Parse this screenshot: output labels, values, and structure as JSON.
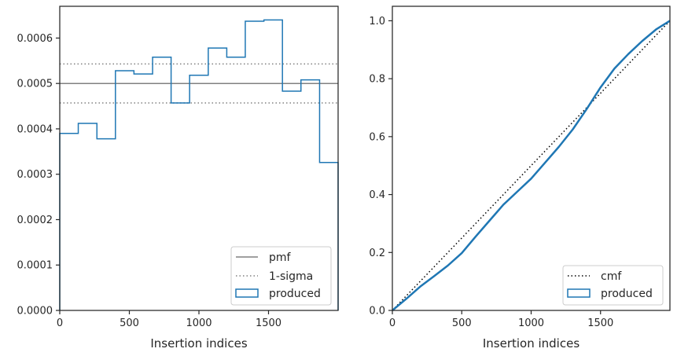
{
  "chart_data": [
    {
      "type": "histogram-step",
      "xlabel": "Insertion indices",
      "ylabel": "",
      "xlim": [
        0,
        2000
      ],
      "ylim": [
        0,
        0.00067
      ],
      "xticks": [
        0,
        500,
        1000,
        1500
      ],
      "xtick_labels": [
        "0",
        "500",
        "1000",
        "1500"
      ],
      "yticks": [
        0,
        0.0001,
        0.0002,
        0.0003,
        0.0004,
        0.0005,
        0.0006
      ],
      "ytick_labels": [
        "0.0000",
        "0.0001",
        "0.0002",
        "0.0003",
        "0.0004",
        "0.0005",
        "0.0006"
      ],
      "bins": [
        {
          "x0": 0,
          "x1": 133,
          "y": 0.00039
        },
        {
          "x0": 133,
          "x1": 267,
          "y": 0.000412
        },
        {
          "x0": 267,
          "x1": 400,
          "y": 0.000378
        },
        {
          "x0": 400,
          "x1": 533,
          "y": 0.000528
        },
        {
          "x0": 533,
          "x1": 667,
          "y": 0.000521
        },
        {
          "x0": 667,
          "x1": 800,
          "y": 0.000558
        },
        {
          "x0": 800,
          "x1": 933,
          "y": 0.000457
        },
        {
          "x0": 933,
          "x1": 1067,
          "y": 0.000518
        },
        {
          "x0": 1067,
          "x1": 1200,
          "y": 0.000578
        },
        {
          "x0": 1200,
          "x1": 1333,
          "y": 0.000558
        },
        {
          "x0": 1333,
          "x1": 1467,
          "y": 0.000637
        },
        {
          "x0": 1467,
          "x1": 1600,
          "y": 0.00064
        },
        {
          "x0": 1600,
          "x1": 1733,
          "y": 0.000483
        },
        {
          "x0": 1733,
          "x1": 1867,
          "y": 0.000508
        },
        {
          "x0": 1867,
          "x1": 2000,
          "y": 0.000326
        }
      ],
      "pmf": 0.0005,
      "sigma_lines": [
        0.000457,
        0.000543
      ],
      "legend": {
        "position": "lower right",
        "entries": [
          "pmf",
          "1-sigma",
          "produced"
        ]
      },
      "colors": {
        "produced": "#1f77b4",
        "pmf": "#808080",
        "sigma": "#808080"
      },
      "grid": false
    },
    {
      "type": "line",
      "xlabel": "Insertion indices",
      "ylabel": "",
      "xlim": [
        0,
        2000
      ],
      "ylim": [
        0,
        1.05
      ],
      "xticks": [
        0,
        500,
        1000,
        1500
      ],
      "xtick_labels": [
        "0",
        "500",
        "1000",
        "1500"
      ],
      "yticks": [
        0,
        0.2,
        0.4,
        0.6,
        0.8,
        1.0
      ],
      "ytick_labels": [
        "0.0",
        "0.2",
        "0.4",
        "0.6",
        "0.8",
        "1.0"
      ],
      "cmf": {
        "x": [
          0,
          2000
        ],
        "y": [
          0,
          1.0
        ]
      },
      "produced": {
        "x": [
          0,
          100,
          200,
          300,
          400,
          500,
          600,
          700,
          800,
          900,
          1000,
          1100,
          1200,
          1300,
          1400,
          1500,
          1600,
          1700,
          1800,
          1900,
          2000
        ],
        "y": [
          0,
          0.04,
          0.082,
          0.118,
          0.155,
          0.198,
          0.255,
          0.31,
          0.365,
          0.41,
          0.455,
          0.51,
          0.565,
          0.625,
          0.695,
          0.77,
          0.835,
          0.885,
          0.93,
          0.97,
          1.0
        ]
      },
      "legend": {
        "position": "lower right",
        "entries": [
          "cmf",
          "produced"
        ]
      },
      "colors": {
        "produced": "#1f77b4",
        "cmf": "#000000"
      },
      "grid": false
    }
  ]
}
